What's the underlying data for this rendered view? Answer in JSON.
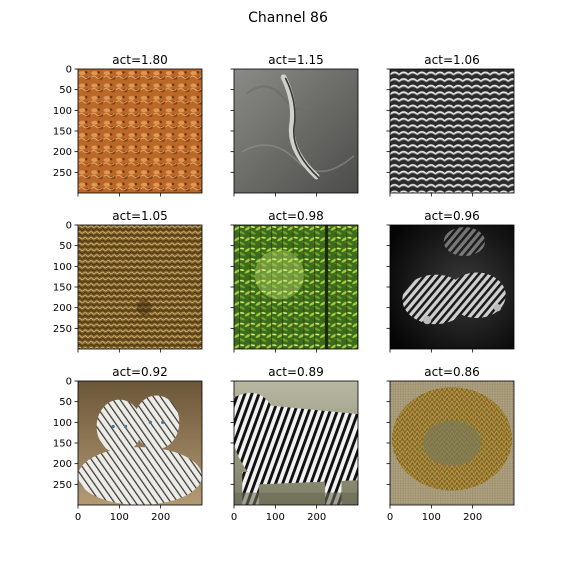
{
  "figure": {
    "title": "Channel 86"
  },
  "chart_data": {
    "type": "image-grid",
    "title": "Channel 86",
    "rows": 3,
    "cols": 3,
    "image_size": [
      300,
      300
    ],
    "xlim": [
      0,
      300
    ],
    "ylim": [
      300,
      0
    ],
    "x_ticks": [
      0,
      100,
      200
    ],
    "y_ticks": [
      0,
      50,
      100,
      150,
      200,
      250
    ],
    "x_tick_labels": [
      "0",
      "100",
      "200"
    ],
    "y_tick_labels": [
      "0",
      "50",
      "100",
      "150",
      "200",
      "250"
    ],
    "panels": [
      {
        "title": "act=1.80",
        "activation": 1.8,
        "subject": "orange crabs / shell texture"
      },
      {
        "title": "act=1.15",
        "activation": 1.15,
        "subject": "grey embossed relief with worm-like shape"
      },
      {
        "title": "act=1.06",
        "activation": 1.06,
        "subject": "black-and-white roof tiles"
      },
      {
        "title": "act=1.05",
        "activation": 1.05,
        "subject": "brain coral texture"
      },
      {
        "title": "act=0.98",
        "activation": 0.98,
        "subject": "green bamboo foliage"
      },
      {
        "title": "act=0.96",
        "activation": 0.96,
        "subject": "black-and-white nautilus shells"
      },
      {
        "title": "act=0.92",
        "activation": 0.92,
        "subject": "white tigers"
      },
      {
        "title": "act=0.89",
        "activation": 0.89,
        "subject": "zebra"
      },
      {
        "title": "act=0.86",
        "activation": 0.86,
        "subject": "sea anemone"
      }
    ]
  }
}
